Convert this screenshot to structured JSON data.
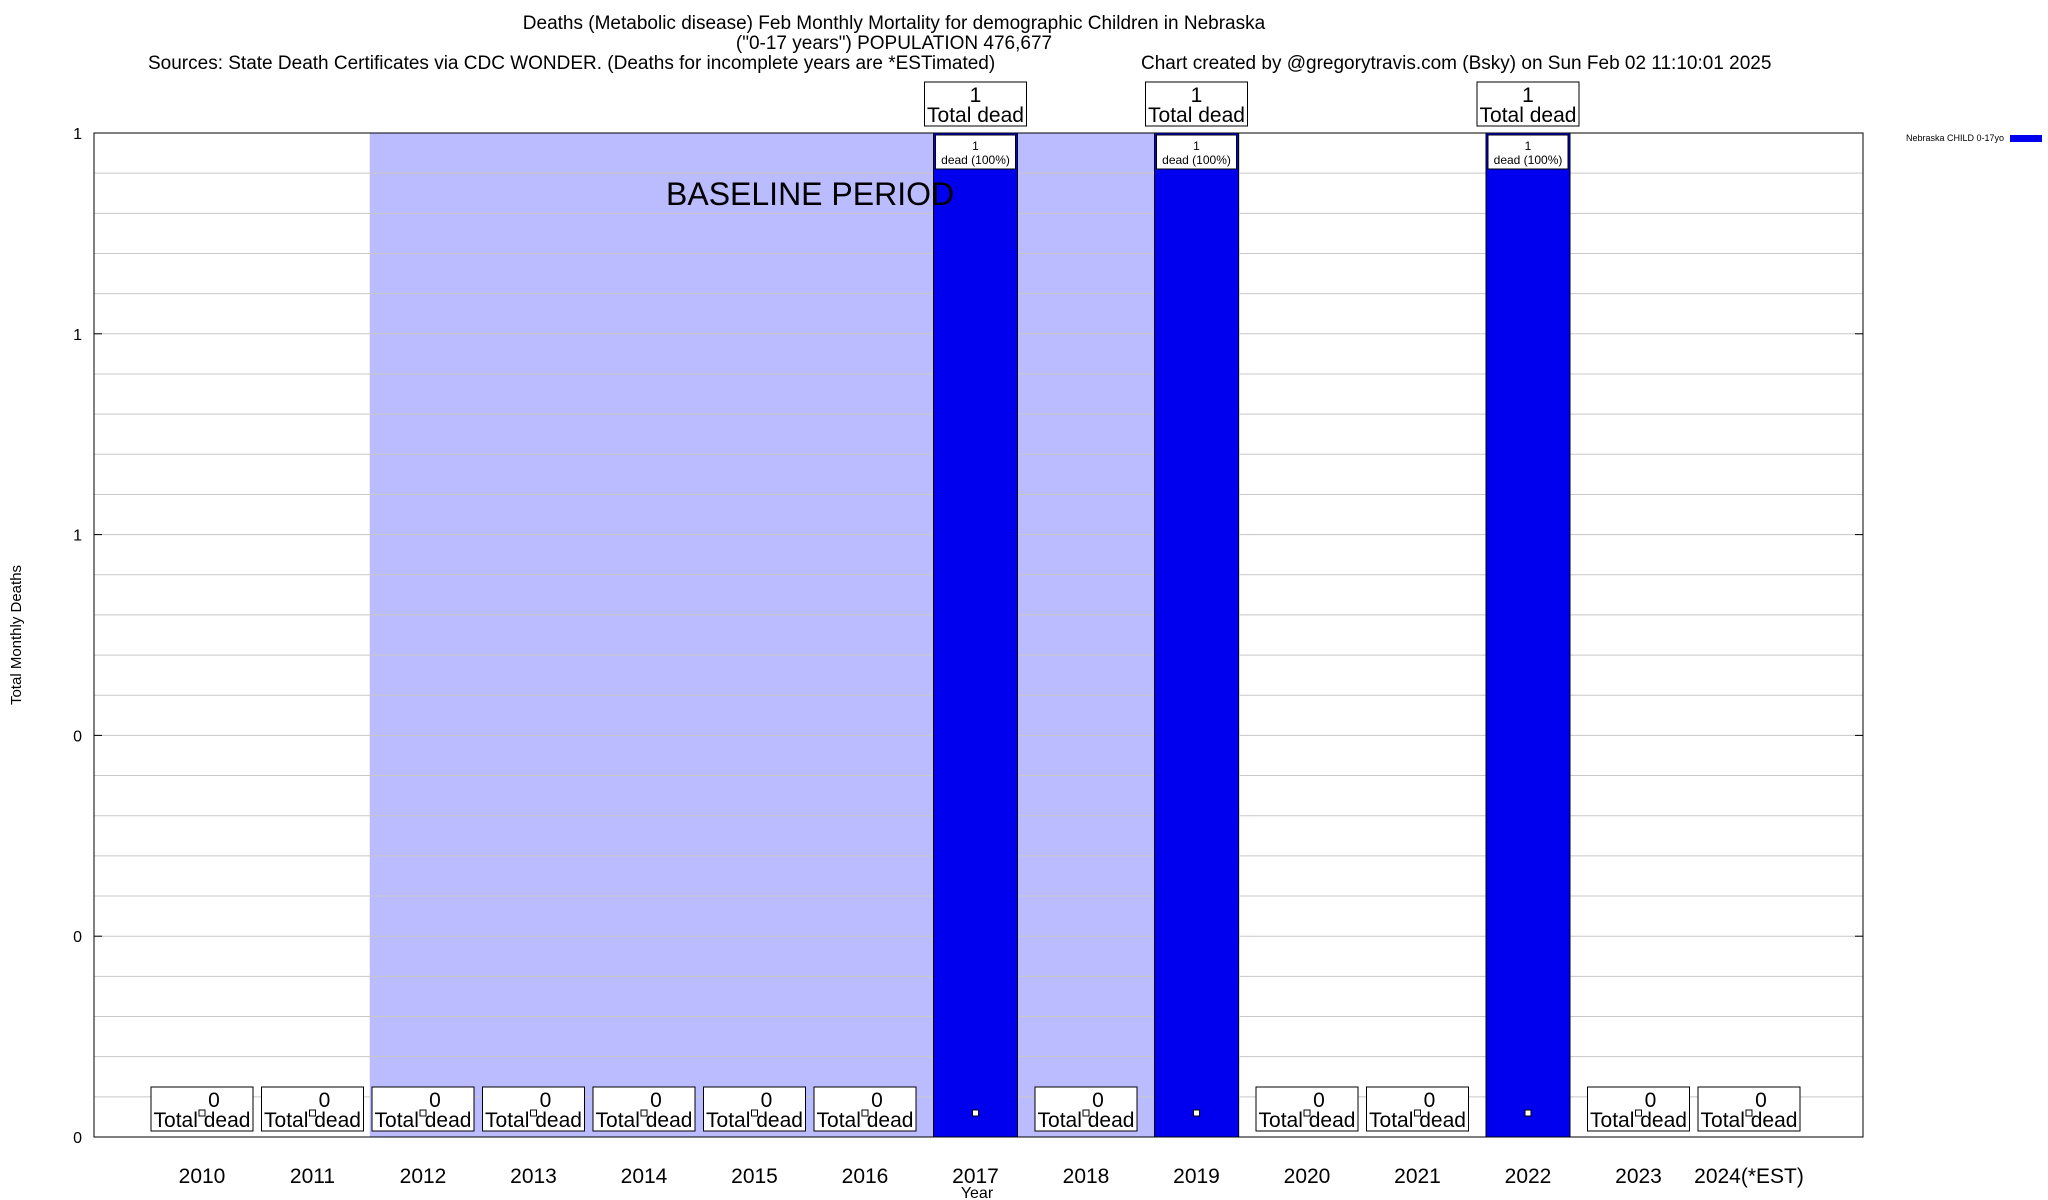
{
  "header": {
    "title": "Deaths (Metabolic disease) Feb Monthly Mortality for demographic Children in Nebraska",
    "subtitle": "(\"0-17 years\") POPULATION 476,677",
    "sources": "Sources: State Death Certificates via CDC WONDER. (Deaths for incomplete years are *ESTimated)",
    "credit": "Chart created by @gregorytravis.com (Bsky) on Sun Feb 02 11:10:01 2025"
  },
  "chart_data": {
    "type": "bar",
    "categories": [
      "2010",
      "2011",
      "2012",
      "2013",
      "2014",
      "2015",
      "2016",
      "2017",
      "2018",
      "2019",
      "2020",
      "2021",
      "2022",
      "2023",
      "2024(*EST)"
    ],
    "series": [
      {
        "name": "Nebraska CHILD 0-17yo",
        "color": "#0000ee",
        "values": [
          0,
          0,
          0,
          0,
          0,
          0,
          0,
          1,
          0,
          1,
          0,
          0,
          1,
          0,
          0
        ]
      }
    ],
    "xlabel": "Year",
    "ylabel": "Total Monthly Deaths",
    "ylim": [
      0,
      1
    ],
    "y_tick_labels": [
      "0",
      "0",
      "0",
      "1",
      "1",
      "1"
    ],
    "grid": true,
    "total_label_suffix": "Total dead",
    "bar_inner_labels": {
      "2017": "dead (100%)",
      "2019": "dead (100%)",
      "2022": "dead (100%)"
    },
    "baseline_period": {
      "label": "BASELINE PERIOD",
      "from": "2012",
      "to": "2019",
      "color": "#bbbbff"
    },
    "legend_position": "top-right"
  }
}
